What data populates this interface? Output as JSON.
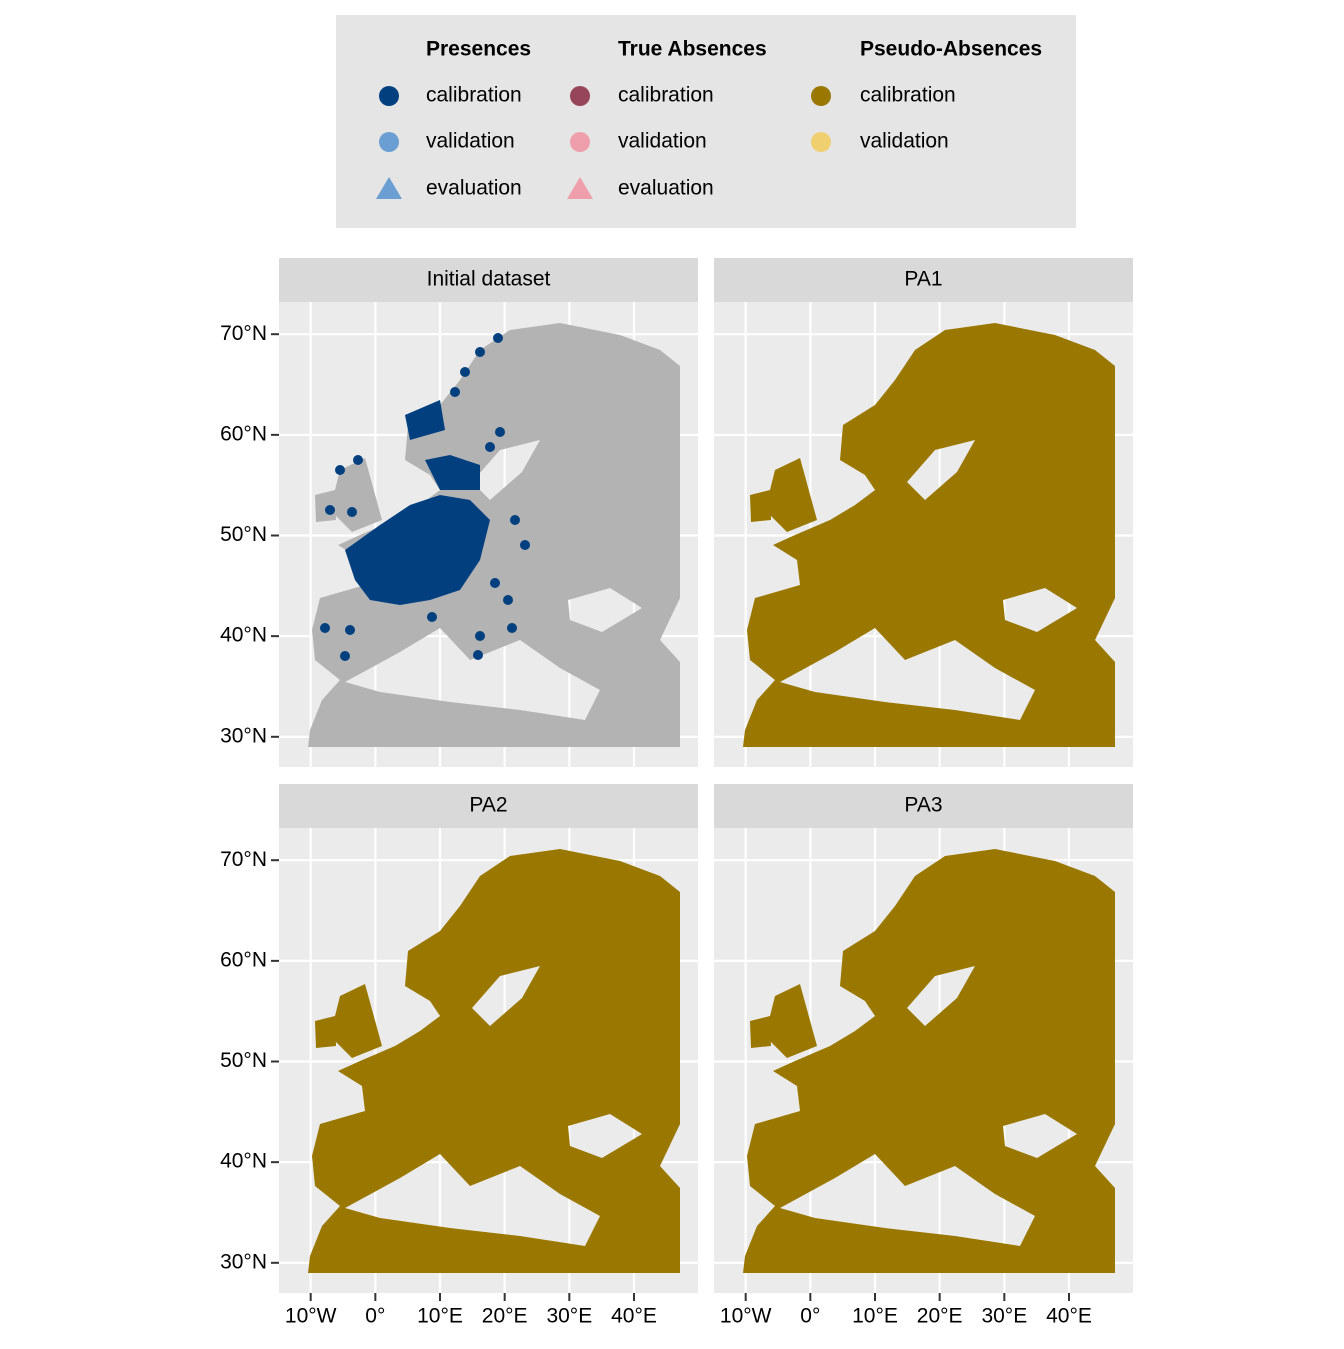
{
  "chart_data": {
    "type": "map",
    "legend": [
      {
        "title": "Presences",
        "items": [
          {
            "label": "calibration",
            "color": "#013f7f",
            "shape": "circle"
          },
          {
            "label": "validation",
            "color": "#6b9fd3",
            "shape": "circle"
          },
          {
            "label": "evaluation",
            "color": "#6b9fd3",
            "shape": "triangle"
          }
        ]
      },
      {
        "title": "True Absences",
        "items": [
          {
            "label": "calibration",
            "color": "#97455b",
            "shape": "circle"
          },
          {
            "label": "validation",
            "color": "#ef9fab",
            "shape": "circle"
          },
          {
            "label": "evaluation",
            "color": "#ef9fab",
            "shape": "triangle"
          }
        ]
      },
      {
        "title": "Pseudo-Absences",
        "items": [
          {
            "label": "calibration",
            "color": "#9a7800",
            "shape": "circle"
          },
          {
            "label": "validation",
            "color": "#efcf70",
            "shape": "circle"
          }
        ]
      }
    ],
    "panels": [
      {
        "title": "Initial dataset",
        "fill": "#b3b3b3"
      },
      {
        "title": "PA1",
        "fill": "#9a7800"
      },
      {
        "title": "PA2",
        "fill": "#9a7800"
      },
      {
        "title": "PA3",
        "fill": "#9a7800"
      }
    ],
    "xlim": [
      -14.9,
      49.9
    ],
    "ylim": [
      27.0,
      73.2
    ],
    "xticks": [
      {
        "value": -10,
        "label": "10°W"
      },
      {
        "value": 0,
        "label": "0°"
      },
      {
        "value": 10,
        "label": "10°E"
      },
      {
        "value": 20,
        "label": "20°E"
      },
      {
        "value": 30,
        "label": "30°E"
      },
      {
        "value": 40,
        "label": "40°E"
      }
    ],
    "yticks": [
      {
        "value": 30,
        "label": "30°N"
      },
      {
        "value": 40,
        "label": "40°N"
      },
      {
        "value": 50,
        "label": "50°N"
      },
      {
        "value": 60,
        "label": "60°N"
      },
      {
        "value": 70,
        "label": "70°N"
      }
    ],
    "grid": true
  }
}
